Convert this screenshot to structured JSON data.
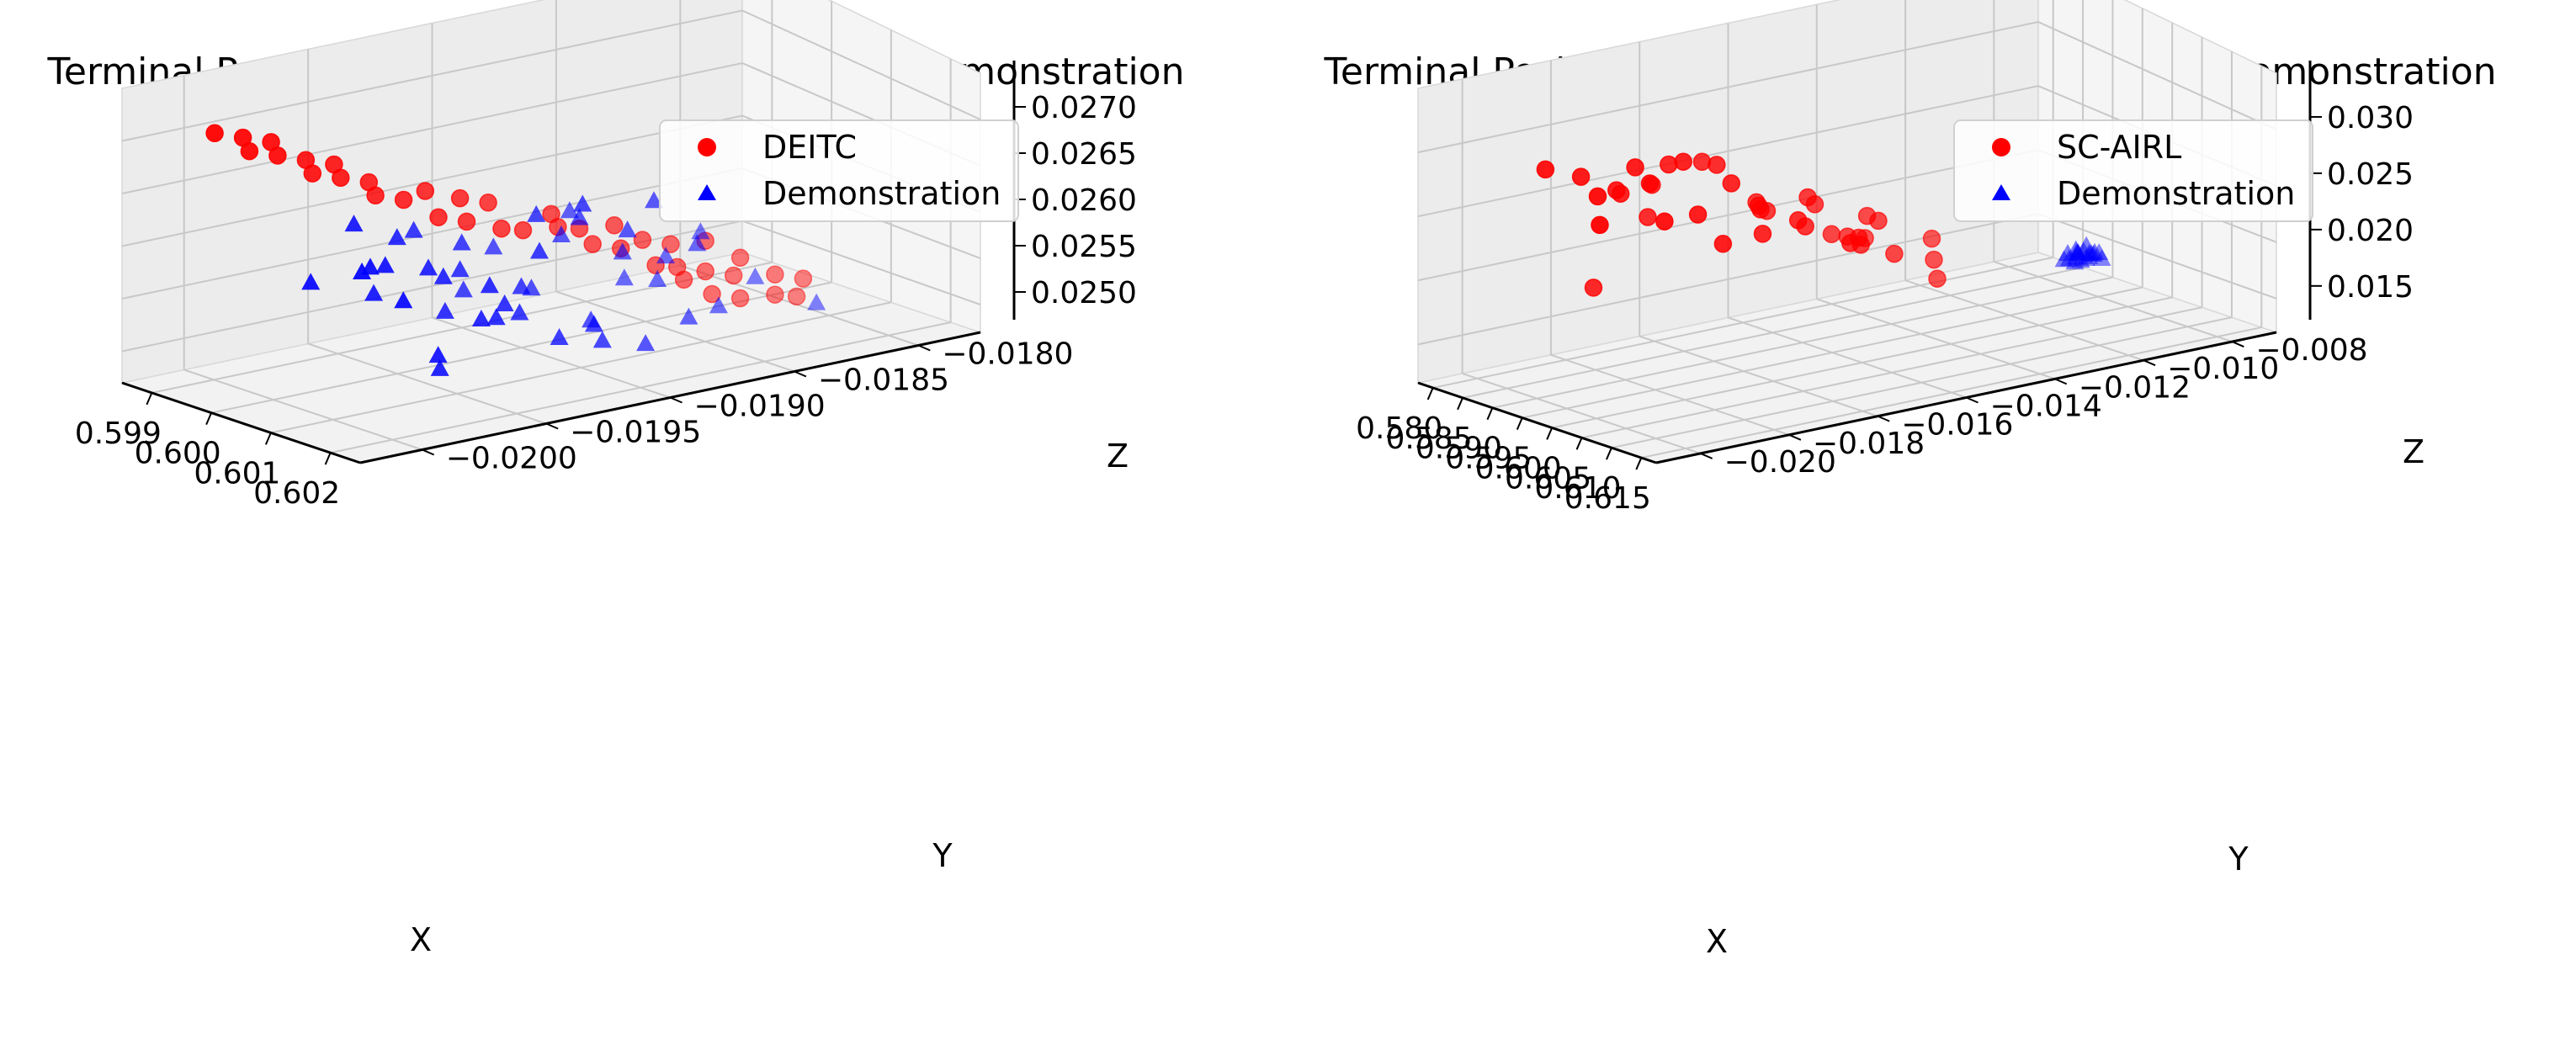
{
  "chart_data": [
    {
      "type": "scatter3d",
      "title": "Terminal Position of End-effector of DEITC and Demonstration",
      "xlabel": "X",
      "ylabel": "Y",
      "zlabel": "Z",
      "xticks": [
        "0.599",
        "0.600",
        "0.601",
        "0.602"
      ],
      "yticks": [
        "−0.0180",
        "−0.0185",
        "−0.0190",
        "−0.0195",
        "−0.0200"
      ],
      "zticks": [
        "0.0250",
        "0.0255",
        "0.0260",
        "0.0265",
        "0.0270"
      ],
      "xlim": [
        0.5985,
        0.6021
      ],
      "ylim": [
        -0.02,
        -0.0178
      ],
      "zlim": [
        0.0245,
        0.0272
      ],
      "grid": true,
      "legend": "upper-right",
      "series": [
        {
          "name": "DEITC",
          "marker": "circle",
          "color": "#ff0000",
          "points": [
            [
              0.6006,
              -0.0197,
              0.0247
            ],
            [
              0.6007,
              -0.0196,
              0.0248
            ],
            [
              0.6006,
              -0.0195,
              0.0248
            ],
            [
              0.6007,
              -0.0197,
              0.0249
            ],
            [
              0.6006,
              -0.0194,
              0.0249
            ],
            [
              0.6005,
              -0.0195,
              0.025
            ],
            [
              0.6007,
              -0.0196,
              0.025
            ],
            [
              0.6006,
              -0.0193,
              0.0251
            ],
            [
              0.6005,
              -0.0194,
              0.0251
            ],
            [
              0.6006,
              -0.0195,
              0.0252
            ],
            [
              0.6005,
              -0.0193,
              0.0252
            ],
            [
              0.6006,
              -0.0192,
              0.0253
            ],
            [
              0.6005,
              -0.0194,
              0.0254
            ],
            [
              0.6004,
              -0.0193,
              0.0254
            ],
            [
              0.6005,
              -0.0191,
              0.0255
            ],
            [
              0.6004,
              -0.0192,
              0.0255
            ],
            [
              0.6005,
              -0.019,
              0.0256
            ],
            [
              0.6004,
              -0.0191,
              0.0257
            ],
            [
              0.6003,
              -0.019,
              0.0257
            ],
            [
              0.6004,
              -0.0189,
              0.0258
            ],
            [
              0.6003,
              -0.0188,
              0.0258
            ],
            [
              0.6004,
              -0.0187,
              0.0259
            ],
            [
              0.6003,
              -0.0189,
              0.0259
            ],
            [
              0.6003,
              -0.0186,
              0.026
            ],
            [
              0.6002,
              -0.0187,
              0.0261
            ],
            [
              0.6003,
              -0.0185,
              0.0261
            ],
            [
              0.6002,
              -0.0186,
              0.0262
            ],
            [
              0.6002,
              -0.0184,
              0.0263
            ],
            [
              0.6001,
              -0.0185,
              0.0263
            ],
            [
              0.6002,
              -0.0183,
              0.0264
            ],
            [
              0.6001,
              -0.0183,
              0.0265
            ],
            [
              0.6001,
              -0.0182,
              0.0266
            ],
            [
              0.6,
              -0.0182,
              0.0267
            ],
            [
              0.6001,
              -0.0181,
              0.0267
            ],
            [
              0.6,
              -0.0181,
              0.0268
            ],
            [
              0.6,
              -0.018,
              0.0269
            ],
            [
              0.5999,
              -0.018,
              0.027
            ],
            [
              0.6,
              -0.0179,
              0.027
            ],
            [
              0.5999,
              -0.0179,
              0.0271
            ],
            [
              0.5999,
              -0.0178,
              0.0272
            ]
          ]
        },
        {
          "name": "Demonstration",
          "marker": "triangle",
          "color": "#0000ff",
          "points": [
            [
              0.599,
              -0.019,
              0.0252
            ],
            [
              0.5994,
              -0.0188,
              0.025
            ],
            [
              0.5996,
              -0.0191,
              0.0254
            ],
            [
              0.5998,
              -0.0187,
              0.0256
            ],
            [
              0.6,
              -0.0189,
              0.0251
            ],
            [
              0.6001,
              -0.0192,
              0.0253
            ],
            [
              0.6002,
              -0.0186,
              0.0255
            ],
            [
              0.6003,
              -0.019,
              0.0258
            ],
            [
              0.6004,
              -0.0185,
              0.0252
            ],
            [
              0.6005,
              -0.0188,
              0.026
            ],
            [
              0.6006,
              -0.0182,
              0.0256
            ],
            [
              0.6007,
              -0.0187,
              0.0254
            ],
            [
              0.6008,
              -0.0184,
              0.0257
            ],
            [
              0.6009,
              -0.0189,
              0.025
            ],
            [
              0.601,
              -0.0183,
              0.0259
            ],
            [
              0.6011,
              -0.0186,
              0.0253
            ],
            [
              0.6012,
              -0.0181,
              0.0261
            ],
            [
              0.6013,
              -0.0185,
              0.0255
            ],
            [
              0.6014,
              -0.018,
              0.0262
            ],
            [
              0.6015,
              -0.0184,
              0.0258
            ],
            [
              0.6016,
              -0.0182,
              0.0251
            ],
            [
              0.6017,
              -0.0179,
              0.0263
            ],
            [
              0.6018,
              -0.0183,
              0.0256
            ],
            [
              0.6019,
              -0.018,
              0.026
            ],
            [
              0.602,
              -0.0181,
              0.0254
            ],
            [
              0.5997,
              -0.0193,
              0.0249
            ],
            [
              0.5999,
              -0.0194,
              0.0251
            ],
            [
              0.6002,
              -0.0193,
              0.025
            ],
            [
              0.6004,
              -0.0196,
              0.0249
            ],
            [
              0.6007,
              -0.0194,
              0.0248
            ],
            [
              0.6009,
              -0.0197,
              0.0247
            ],
            [
              0.6011,
              -0.0192,
              0.0249
            ],
            [
              0.6013,
              -0.019,
              0.0248
            ],
            [
              0.6015,
              -0.0188,
              0.025
            ],
            [
              0.6017,
              -0.0186,
              0.0252
            ],
            [
              0.6006,
              -0.0191,
              0.0257
            ],
            [
              0.6008,
              -0.0193,
              0.0255
            ],
            [
              0.601,
              -0.0191,
              0.0261
            ],
            [
              0.6012,
              -0.0188,
              0.0263
            ],
            [
              0.6001,
              -0.0184,
              0.0259
            ],
            [
              0.6003,
              -0.0182,
              0.0262
            ],
            [
              0.6005,
              -0.018,
              0.0258
            ],
            [
              0.6014,
              -0.0186,
              0.026
            ],
            [
              0.6016,
              -0.0184,
              0.0255
            ],
            [
              0.6018,
              -0.0187,
              0.0253
            ],
            [
              0.5995,
              -0.0186,
              0.0257
            ],
            [
              0.5993,
              -0.0192,
              0.0255
            ],
            [
              0.6,
              -0.0195,
              0.0253
            ]
          ]
        }
      ]
    },
    {
      "type": "scatter3d",
      "title": "Terminal Position of End-effector of SC-AIRL and Demonstration",
      "xlabel": "X",
      "ylabel": "Y",
      "zlabel": "Z",
      "xticks": [
        "0.580",
        "0.585",
        "0.590",
        "0.595",
        "0.600",
        "0.605",
        "0.610",
        "0.615"
      ],
      "yticks": [
        "−0.008",
        "−0.010",
        "−0.012",
        "−0.014",
        "−0.016",
        "−0.018",
        "−0.020"
      ],
      "zticks": [
        "0.015",
        "0.020",
        "0.025",
        "0.030"
      ],
      "xlim": [
        0.578,
        0.616
      ],
      "ylim": [
        -0.0205,
        -0.007
      ],
      "zlim": [
        0.011,
        0.033
      ],
      "grid": true,
      "legend": "upper-right",
      "series": [
        {
          "name": "SC-AIRL",
          "marker": "circle",
          "color": "#ff0000",
          "points": [
            [
              0.584,
              -0.01,
              0.017
            ],
            [
              0.586,
              -0.011,
              0.0245
            ],
            [
              0.589,
              -0.0105,
              0.023
            ],
            [
              0.592,
              -0.0095,
              0.0262
            ],
            [
              0.594,
              -0.011,
              0.028
            ],
            [
              0.596,
              -0.01,
              0.029
            ],
            [
              0.598,
              -0.009,
              0.03
            ],
            [
              0.6,
              -0.0105,
              0.0295
            ],
            [
              0.602,
              -0.0095,
              0.031
            ],
            [
              0.604,
              -0.0085,
              0.0305
            ],
            [
              0.606,
              -0.01,
              0.0298
            ],
            [
              0.608,
              -0.009,
              0.0285
            ],
            [
              0.61,
              -0.008,
              0.0292
            ],
            [
              0.597,
              -0.012,
              0.024
            ],
            [
              0.599,
              -0.0115,
              0.0255
            ],
            [
              0.601,
              -0.0125,
              0.025
            ],
            [
              0.603,
              -0.011,
              0.0265
            ],
            [
              0.605,
              -0.0118,
              0.027
            ],
            [
              0.607,
              -0.0105,
              0.0275
            ],
            [
              0.609,
              -0.0112,
              0.026
            ],
            [
              0.611,
              -0.01,
              0.0268
            ],
            [
              0.6,
              -0.013,
              0.022
            ],
            [
              0.602,
              -0.0135,
              0.0235
            ],
            [
              0.604,
              -0.0128,
              0.0228
            ],
            [
              0.606,
              -0.0132,
              0.0242
            ],
            [
              0.608,
              -0.0125,
              0.0238
            ],
            [
              0.61,
              -0.013,
              0.0225
            ],
            [
              0.612,
              -0.012,
              0.0245
            ],
            [
              0.614,
              -0.0115,
              0.0255
            ],
            [
              0.595,
              -0.009,
              0.0275
            ],
            [
              0.593,
              -0.0085,
              0.0285
            ],
            [
              0.591,
              -0.008,
              0.029
            ],
            [
              0.603,
              -0.0075,
              0.03
            ],
            [
              0.607,
              -0.007,
              0.029
            ],
            [
              0.612,
              -0.009,
              0.027
            ],
            [
              0.609,
              -0.014,
              0.021
            ],
            [
              0.611,
              -0.0138,
              0.02
            ],
            [
              0.605,
              -0.0145,
              0.0215
            ],
            [
              0.598,
              -0.014,
              0.0205
            ],
            [
              0.613,
              -0.0105,
              0.028
            ]
          ]
        },
        {
          "name": "Demonstration",
          "marker": "triangle",
          "color": "#0000ff",
          "points": [
            [
              0.599,
              -0.0185,
              0.016
            ],
            [
              0.5995,
              -0.0184,
              0.0162
            ],
            [
              0.6,
              -0.0186,
              0.0158
            ],
            [
              0.6005,
              -0.0183,
              0.0164
            ],
            [
              0.6002,
              -0.0187,
              0.0161
            ],
            [
              0.5998,
              -0.0182,
              0.0159
            ],
            [
              0.6008,
              -0.0185,
              0.0163
            ],
            [
              0.5993,
              -0.0188,
              0.0157
            ],
            [
              0.6003,
              -0.0181,
              0.0165
            ],
            [
              0.601,
              -0.0184,
              0.016
            ],
            [
              0.5996,
              -0.0186,
              0.0166
            ],
            [
              0.6006,
              -0.0188,
              0.0156
            ],
            [
              0.6001,
              -0.0183,
              0.016
            ],
            [
              0.5999,
              -0.0185,
              0.0163
            ],
            [
              0.6004,
              -0.0186,
              0.0161
            ],
            [
              0.6007,
              -0.0182,
              0.0158
            ],
            [
              0.5994,
              -0.0184,
              0.0164
            ],
            [
              0.6009,
              -0.0187,
              0.0162
            ],
            [
              0.5997,
              -0.0181,
              0.0159
            ],
            [
              0.6002,
              -0.0184,
              0.0157
            ]
          ]
        }
      ]
    }
  ]
}
